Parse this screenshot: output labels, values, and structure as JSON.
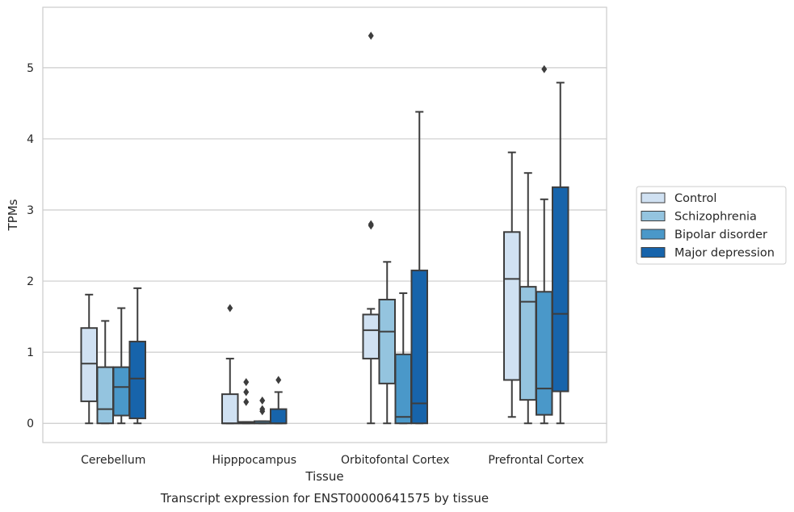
{
  "chart_data": {
    "type": "boxplot",
    "title": "",
    "caption": "Transcript expression for ENST00000641575 by tissue",
    "xlabel": "Tissue",
    "ylabel": "TPMs",
    "ylim": [
      -0.27,
      5.85
    ],
    "yticks": [
      0,
      1,
      2,
      3,
      4,
      5
    ],
    "grid": "horizontal",
    "legend_position": "right",
    "categories": [
      "Cerebellum",
      "Hipppocampus",
      "Orbitofontal Cortex",
      "Prefrontal Cortex"
    ],
    "series": [
      {
        "name": "Control",
        "color": "#d0e1f2",
        "boxes": [
          {
            "whislo": 0.0,
            "q1": 0.31,
            "med": 0.84,
            "q3": 1.34,
            "whishi": 1.81,
            "fliers": []
          },
          {
            "whislo": 0.0,
            "q1": 0.0,
            "med": 0.0,
            "q3": 0.41,
            "whishi": 0.91,
            "fliers": [
              1.62
            ]
          },
          {
            "whislo": 0.0,
            "q1": 0.91,
            "med": 1.31,
            "q3": 1.53,
            "whishi": 1.61,
            "fliers": [
              5.45,
              2.8,
              2.78
            ]
          },
          {
            "whislo": 0.09,
            "q1": 0.61,
            "med": 2.03,
            "q3": 2.69,
            "whishi": 3.81,
            "fliers": []
          }
        ]
      },
      {
        "name": "Schizophrenia",
        "color": "#94c4df",
        "boxes": [
          {
            "whislo": 0.0,
            "q1": 0.0,
            "med": 0.2,
            "q3": 0.79,
            "whishi": 1.44,
            "fliers": []
          },
          {
            "whislo": 0.0,
            "q1": 0.0,
            "med": 0.0,
            "q3": 0.02,
            "whishi": 0.02,
            "fliers": [
              0.58,
              0.44,
              0.3
            ]
          },
          {
            "whislo": 0.0,
            "q1": 0.56,
            "med": 1.29,
            "q3": 1.74,
            "whishi": 2.27,
            "fliers": []
          },
          {
            "whislo": 0.0,
            "q1": 0.33,
            "med": 1.71,
            "q3": 1.92,
            "whishi": 3.52,
            "fliers": []
          }
        ]
      },
      {
        "name": "Bipolar disorder",
        "color": "#4a98c9",
        "boxes": [
          {
            "whislo": 0.0,
            "q1": 0.11,
            "med": 0.51,
            "q3": 0.79,
            "whishi": 1.62,
            "fliers": []
          },
          {
            "whislo": 0.0,
            "q1": 0.0,
            "med": 0.0,
            "q3": 0.03,
            "whishi": 0.03,
            "fliers": [
              0.32,
              0.2,
              0.17
            ]
          },
          {
            "whislo": 0.0,
            "q1": 0.0,
            "med": 0.09,
            "q3": 0.97,
            "whishi": 1.83,
            "fliers": []
          },
          {
            "whislo": 0.0,
            "q1": 0.12,
            "med": 0.49,
            "q3": 1.85,
            "whishi": 3.15,
            "fliers": [
              4.98
            ]
          }
        ]
      },
      {
        "name": "Major depression",
        "color": "#1764ab",
        "boxes": [
          {
            "whislo": 0.0,
            "q1": 0.07,
            "med": 0.63,
            "q3": 1.15,
            "whishi": 1.9,
            "fliers": []
          },
          {
            "whislo": 0.0,
            "q1": 0.0,
            "med": 0.0,
            "q3": 0.2,
            "whishi": 0.44,
            "fliers": [
              0.61
            ]
          },
          {
            "whislo": 0.0,
            "q1": 0.0,
            "med": 0.28,
            "q3": 2.15,
            "whishi": 4.38,
            "fliers": []
          },
          {
            "whislo": 0.0,
            "q1": 0.45,
            "med": 1.54,
            "q3": 3.32,
            "whishi": 4.79,
            "fliers": []
          }
        ]
      }
    ]
  }
}
